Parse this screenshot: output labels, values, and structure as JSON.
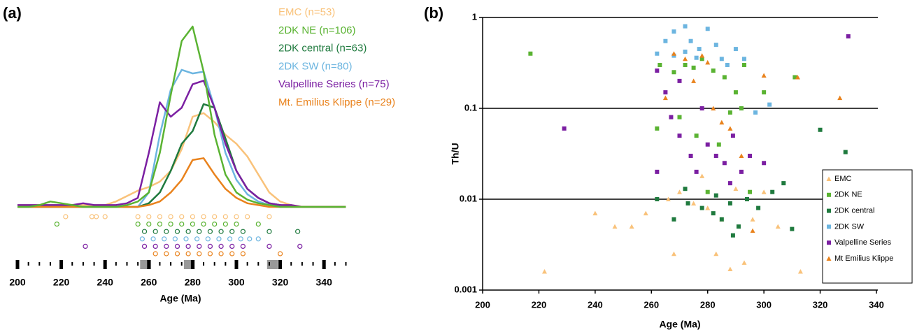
{
  "chart_data": [
    {
      "type": "density",
      "panel_label": "(a)",
      "xlabel": "Age (Ma)",
      "xlim": [
        200,
        350
      ],
      "ylim": [
        0,
        1
      ],
      "xticks": [
        200,
        220,
        240,
        260,
        280,
        300,
        320,
        340
      ],
      "minor_xticks": [
        205,
        210,
        215,
        225,
        230,
        235,
        245,
        250,
        255,
        265,
        270,
        275,
        285,
        290,
        295,
        305,
        310,
        315,
        325,
        330,
        335,
        345,
        350
      ],
      "shaded_ranges": [
        [
          256,
          261
        ],
        [
          276,
          281
        ],
        [
          314,
          319
        ]
      ],
      "x": [
        200,
        205,
        210,
        215,
        220,
        225,
        230,
        235,
        240,
        245,
        250,
        255,
        260,
        265,
        270,
        275,
        280,
        285,
        290,
        295,
        300,
        305,
        310,
        315,
        320,
        325,
        330,
        335,
        340,
        345,
        350
      ],
      "series": [
        {
          "name": "EMC (n=53)",
          "color": "#f9c27a",
          "values": [
            0.01,
            0.01,
            0.01,
            0.01,
            0.01,
            0.01,
            0.01,
            0.01,
            0.01,
            0.03,
            0.06,
            0.09,
            0.11,
            0.14,
            0.2,
            0.32,
            0.5,
            0.52,
            0.47,
            0.4,
            0.35,
            0.28,
            0.18,
            0.08,
            0.03,
            0.01,
            0,
            0,
            0,
            0,
            0
          ],
          "ages": [
            222,
            234,
            236,
            240,
            255,
            260,
            265,
            270,
            275,
            280,
            285,
            290,
            295,
            300,
            305,
            315
          ]
        },
        {
          "name": "2DK NE (n=106)",
          "color": "#5ab332",
          "values": [
            0,
            0,
            0.01,
            0.03,
            0.02,
            0.01,
            0,
            0,
            0,
            0,
            0.01,
            0.03,
            0.08,
            0.3,
            0.62,
            0.92,
            1.0,
            0.75,
            0.4,
            0.18,
            0.08,
            0.04,
            0.02,
            0.01,
            0,
            0,
            0,
            0,
            0,
            0,
            0
          ],
          "ages": [
            218,
            255,
            260,
            265,
            270,
            275,
            280,
            285,
            290,
            295,
            300,
            310
          ]
        },
        {
          "name": "2DK central (n=63)",
          "color": "#1f7a3e",
          "values": [
            0,
            0,
            0,
            0,
            0,
            0,
            0,
            0,
            0,
            0,
            0,
            0,
            0.02,
            0.08,
            0.2,
            0.35,
            0.42,
            0.57,
            0.55,
            0.38,
            0.2,
            0.1,
            0.05,
            0.02,
            0.01,
            0,
            0,
            0,
            0,
            0,
            0
          ],
          "ages": [
            258,
            263,
            268,
            273,
            278,
            283,
            288,
            293,
            298,
            303,
            315,
            328
          ]
        },
        {
          "name": "2DK SW (n=80)",
          "color": "#6cb5e0",
          "values": [
            0,
            0,
            0,
            0,
            0,
            0,
            0,
            0,
            0,
            0,
            0,
            0,
            0.08,
            0.4,
            0.65,
            0.76,
            0.74,
            0.75,
            0.55,
            0.3,
            0.15,
            0.07,
            0.03,
            0.01,
            0,
            0,
            0,
            0,
            0,
            0,
            0
          ],
          "ages": [
            257,
            262,
            267,
            272,
            277,
            282,
            287,
            292,
            297,
            302,
            306,
            310
          ]
        },
        {
          "name": "Valpelline Series (n=75)",
          "color": "#7b1fa2",
          "values": [
            0.01,
            0.01,
            0.01,
            0.01,
            0.01,
            0.01,
            0.02,
            0.01,
            0.01,
            0.01,
            0.02,
            0.05,
            0.3,
            0.58,
            0.5,
            0.55,
            0.68,
            0.7,
            0.55,
            0.35,
            0.2,
            0.1,
            0.05,
            0.02,
            0.01,
            0.01,
            0,
            0,
            0,
            0,
            0
          ],
          "ages": [
            231,
            258,
            263,
            268,
            273,
            278,
            283,
            288,
            293,
            298,
            303,
            315,
            329
          ]
        },
        {
          "name": "Mt. Emilius Klippe (n=29)",
          "color": "#e9821c",
          "values": [
            0,
            0,
            0,
            0,
            0,
            0,
            0,
            0,
            0,
            0,
            0,
            0,
            0.01,
            0.03,
            0.08,
            0.15,
            0.26,
            0.27,
            0.18,
            0.1,
            0.05,
            0.02,
            0.01,
            0,
            0,
            0,
            0,
            0,
            0,
            0,
            0
          ],
          "ages": [
            263,
            268,
            273,
            278,
            283,
            288,
            293,
            298,
            303,
            320
          ]
        }
      ]
    },
    {
      "type": "scatter",
      "panel_label": "(b)",
      "xlabel": "Age (Ma)",
      "ylabel": "Th/U",
      "xlim": [
        200,
        340
      ],
      "ylim": [
        0.001,
        1
      ],
      "log_y": true,
      "grid": true,
      "legend": "right",
      "xticks": [
        200,
        220,
        240,
        260,
        280,
        300,
        320,
        340
      ],
      "yticks": [
        0.001,
        0.01,
        0.1,
        1
      ],
      "series": [
        {
          "name": "EMC",
          "color": "#f9c27a",
          "marker": "triangle",
          "x": [
            222,
            240,
            247,
            253,
            258,
            268,
            270,
            275,
            280,
            283,
            285,
            288,
            290,
            293,
            296,
            300,
            305,
            313,
            278,
            266
          ],
          "y": [
            0.0016,
            0.007,
            0.005,
            0.005,
            0.007,
            0.0025,
            0.012,
            0.009,
            0.008,
            0.0025,
            0.006,
            0.0017,
            0.013,
            0.002,
            0.006,
            0.012,
            0.005,
            0.0016,
            0.018,
            0.01
          ]
        },
        {
          "name": "2DK NE",
          "color": "#5ab332",
          "marker": "square",
          "x": [
            217,
            263,
            268,
            272,
            275,
            278,
            282,
            286,
            290,
            293,
            262,
            270,
            276,
            284,
            288,
            292,
            300,
            311,
            280,
            295
          ],
          "y": [
            0.4,
            0.3,
            0.25,
            0.3,
            0.28,
            0.35,
            0.26,
            0.22,
            0.15,
            0.3,
            0.06,
            0.08,
            0.05,
            0.04,
            0.09,
            0.1,
            0.15,
            0.22,
            0.012,
            0.012
          ]
        },
        {
          "name": "2DK central",
          "color": "#1f7a3e",
          "marker": "square",
          "x": [
            262,
            268,
            273,
            278,
            282,
            285,
            288,
            291,
            294,
            298,
            303,
            307,
            310,
            320,
            329,
            272,
            283,
            289
          ],
          "y": [
            0.01,
            0.006,
            0.009,
            0.008,
            0.007,
            0.006,
            0.009,
            0.005,
            0.01,
            0.008,
            0.012,
            0.015,
            0.0047,
            0.058,
            0.033,
            0.013,
            0.011,
            0.004
          ]
        },
        {
          "name": "2DK SW",
          "color": "#6cb5e0",
          "marker": "square",
          "x": [
            265,
            268,
            272,
            274,
            277,
            280,
            283,
            268,
            272,
            285,
            287,
            290,
            293,
            302,
            297,
            276,
            262
          ],
          "y": [
            0.55,
            0.7,
            0.8,
            0.55,
            0.45,
            0.75,
            0.5,
            0.38,
            0.42,
            0.35,
            0.3,
            0.45,
            0.35,
            0.11,
            0.09,
            0.36,
            0.4
          ]
        },
        {
          "name": "Valpelline Series",
          "color": "#7b1fa2",
          "marker": "square",
          "x": [
            229,
            262,
            265,
            267,
            270,
            274,
            276,
            280,
            283,
            286,
            289,
            292,
            295,
            288,
            278,
            270,
            330,
            300,
            262
          ],
          "y": [
            0.06,
            0.26,
            0.15,
            0.08,
            0.05,
            0.03,
            0.02,
            0.04,
            0.03,
            0.025,
            0.05,
            0.02,
            0.03,
            0.015,
            0.1,
            0.2,
            0.62,
            0.025,
            0.02
          ]
        },
        {
          "name": "Mt  Emilius Klippe",
          "color": "#e9821c",
          "marker": "triangle",
          "x": [
            268,
            272,
            275,
            278,
            280,
            282,
            285,
            288,
            292,
            300,
            312,
            327,
            296,
            265
          ],
          "y": [
            0.4,
            0.35,
            0.2,
            0.38,
            0.32,
            0.1,
            0.07,
            0.06,
            0.03,
            0.23,
            0.22,
            0.13,
            0.0045,
            0.13
          ]
        }
      ]
    }
  ]
}
